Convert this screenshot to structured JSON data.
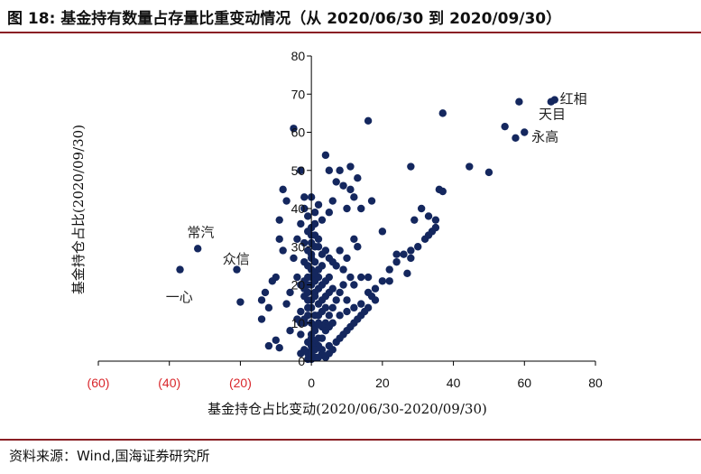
{
  "figure": {
    "title": "图 18:  基金持有数量占存量比重变动情况（从 2020/06/30 到 2020/09/30）",
    "source": "资料来源：Wind,国海证券研究所"
  },
  "colors": {
    "point": "#14275e",
    "negative_tick": "#d9262b",
    "axis": "#000000",
    "rule": "#8a1f24"
  },
  "chart_data": {
    "type": "scatter",
    "xlabel": "基金持仓占比变动(2020/06/30-2020/09/30)",
    "ylabel": "基金持仓占比(2020/09/30)",
    "xlim": [
      -60,
      80
    ],
    "ylim": [
      0,
      80
    ],
    "x_ticks": [
      {
        "value": -60,
        "label": "(60)"
      },
      {
        "value": -40,
        "label": "(40)"
      },
      {
        "value": -20,
        "label": "(20)"
      },
      {
        "value": 0,
        "label": "0"
      },
      {
        "value": 20,
        "label": "20"
      },
      {
        "value": 40,
        "label": "40"
      },
      {
        "value": 60,
        "label": "60"
      },
      {
        "value": 80,
        "label": "80"
      }
    ],
    "y_ticks": [
      0,
      10,
      20,
      30,
      40,
      50,
      60,
      70,
      80
    ],
    "grid": false,
    "annotations": [
      {
        "text": "红相",
        "x": 70,
        "y": 69
      },
      {
        "text": "天目",
        "x": 64,
        "y": 65
      },
      {
        "text": "永高",
        "x": 62,
        "y": 59
      },
      {
        "text": "常汽",
        "x": -35,
        "y": 34
      },
      {
        "text": "众信",
        "x": -25,
        "y": 27
      },
      {
        "text": "一心",
        "x": -41,
        "y": 17
      }
    ],
    "points": [
      [
        68.5,
        68.5
      ],
      [
        67.5,
        68
      ],
      [
        58.5,
        68
      ],
      [
        54.5,
        61.5
      ],
      [
        57.5,
        58.5
      ],
      [
        60,
        60
      ],
      [
        50,
        49.5
      ],
      [
        44.5,
        51
      ],
      [
        37,
        65
      ],
      [
        36,
        45
      ],
      [
        37,
        44.5
      ],
      [
        16,
        63
      ],
      [
        28,
        51
      ],
      [
        -5,
        61
      ],
      [
        -37,
        24
      ],
      [
        -32,
        29.5
      ],
      [
        -21,
        24
      ],
      [
        -20,
        15.5
      ],
      [
        -14,
        11
      ],
      [
        -14,
        16
      ],
      [
        -12,
        14
      ],
      [
        -10,
        5.5
      ],
      [
        -9,
        3.5
      ],
      [
        -12,
        4
      ],
      [
        -8,
        29
      ],
      [
        -9,
        32
      ],
      [
        -11,
        21
      ],
      [
        -13,
        18
      ],
      [
        -8,
        45
      ],
      [
        -7,
        42
      ],
      [
        -9,
        37
      ],
      [
        -10,
        22
      ],
      [
        -6,
        8
      ],
      [
        -4,
        11
      ],
      [
        -3,
        10
      ],
      [
        -6,
        18
      ],
      [
        -4,
        22
      ],
      [
        -7,
        15
      ],
      [
        -5,
        27
      ],
      [
        -4,
        32
      ],
      [
        -3,
        36
      ],
      [
        -2,
        43
      ],
      [
        -1,
        34
      ],
      [
        -2,
        40
      ],
      [
        -3,
        50
      ],
      [
        -1,
        38
      ],
      [
        -2,
        26
      ],
      [
        -3,
        20
      ],
      [
        -2,
        17
      ],
      [
        -1,
        14
      ],
      [
        -2,
        10
      ],
      [
        -3,
        7
      ],
      [
        -1,
        5
      ],
      [
        -2,
        3
      ],
      [
        -1,
        2
      ],
      [
        -3,
        2
      ],
      [
        -1,
        0.5
      ],
      [
        0,
        0.5
      ],
      [
        -1,
        12
      ],
      [
        -2,
        11
      ],
      [
        -1,
        16
      ],
      [
        -3,
        13
      ],
      [
        -2,
        21
      ],
      [
        -1,
        22
      ],
      [
        -1,
        20
      ],
      [
        -2,
        19
      ],
      [
        -1,
        18
      ],
      [
        0,
        20
      ],
      [
        0,
        22
      ],
      [
        1,
        18
      ],
      [
        1,
        21
      ],
      [
        2,
        19
      ],
      [
        2,
        15
      ],
      [
        1,
        12
      ],
      [
        2,
        10
      ],
      [
        1,
        8
      ],
      [
        0,
        7
      ],
      [
        2,
        6
      ],
      [
        1,
        5
      ],
      [
        2,
        4
      ],
      [
        3,
        3
      ],
      [
        3,
        2
      ],
      [
        4,
        1
      ],
      [
        5,
        2
      ],
      [
        5,
        4
      ],
      [
        6,
        3
      ],
      [
        7,
        5
      ],
      [
        8,
        6
      ],
      [
        9,
        7
      ],
      [
        10,
        8
      ],
      [
        11,
        9
      ],
      [
        12,
        10
      ],
      [
        13,
        11
      ],
      [
        14,
        12
      ],
      [
        15,
        13
      ],
      [
        16,
        14
      ],
      [
        17,
        17
      ],
      [
        18,
        19
      ],
      [
        20,
        21
      ],
      [
        22,
        24
      ],
      [
        24,
        26
      ],
      [
        26,
        28
      ],
      [
        28,
        29
      ],
      [
        30,
        30
      ],
      [
        32,
        32
      ],
      [
        33,
        33
      ],
      [
        34,
        34
      ],
      [
        35,
        35
      ],
      [
        29,
        37
      ],
      [
        31,
        40
      ],
      [
        33,
        38
      ],
      [
        35,
        37
      ],
      [
        28,
        27
      ],
      [
        24,
        28
      ],
      [
        27,
        23
      ],
      [
        22,
        21
      ],
      [
        20,
        34
      ],
      [
        17,
        42
      ],
      [
        14,
        40
      ],
      [
        12,
        43
      ],
      [
        13,
        48
      ],
      [
        11,
        45
      ],
      [
        10,
        40
      ],
      [
        11,
        51
      ],
      [
        8,
        50
      ],
      [
        5,
        50
      ],
      [
        4,
        54
      ],
      [
        7,
        47
      ],
      [
        9,
        46
      ],
      [
        6,
        42
      ],
      [
        5,
        39
      ],
      [
        3,
        37
      ],
      [
        2,
        41
      ],
      [
        1,
        39
      ],
      [
        0,
        43
      ],
      [
        1,
        33
      ],
      [
        2,
        30
      ],
      [
        3,
        28
      ],
      [
        4,
        29
      ],
      [
        5,
        27
      ],
      [
        6,
        26
      ],
      [
        7,
        25
      ],
      [
        8,
        29
      ],
      [
        9,
        24
      ],
      [
        10,
        27
      ],
      [
        12,
        32
      ],
      [
        13,
        30
      ],
      [
        11,
        22
      ],
      [
        9,
        20
      ],
      [
        8,
        18
      ],
      [
        7,
        16
      ],
      [
        6,
        14
      ],
      [
        5,
        12
      ],
      [
        4,
        10
      ],
      [
        3,
        9
      ],
      [
        4,
        8
      ],
      [
        5,
        9
      ],
      [
        6,
        10
      ],
      [
        8,
        12
      ],
      [
        10,
        16
      ],
      [
        12,
        20
      ],
      [
        14,
        22
      ],
      [
        16,
        18
      ],
      [
        18,
        16
      ],
      [
        16,
        22
      ],
      [
        14,
        15
      ],
      [
        12,
        14
      ],
      [
        10,
        13
      ],
      [
        3,
        16
      ],
      [
        4,
        17
      ],
      [
        5,
        18
      ],
      [
        6,
        19
      ],
      [
        3,
        20
      ],
      [
        4,
        21
      ],
      [
        5,
        22
      ],
      [
        2,
        24
      ],
      [
        3,
        25
      ],
      [
        1,
        26
      ],
      [
        0,
        28
      ],
      [
        1,
        30
      ],
      [
        0,
        31
      ],
      [
        2,
        32
      ],
      [
        0,
        35
      ],
      [
        1,
        36
      ],
      [
        0,
        4
      ],
      [
        0,
        3
      ],
      [
        1,
        1
      ],
      [
        2,
        1
      ],
      [
        0,
        2
      ],
      [
        1,
        3
      ],
      [
        0,
        6
      ],
      [
        3,
        6
      ],
      [
        1,
        9
      ],
      [
        0,
        10
      ],
      [
        2,
        12
      ],
      [
        3,
        13
      ],
      [
        4,
        14
      ],
      [
        0,
        14
      ],
      [
        0,
        16
      ],
      [
        1,
        17
      ],
      [
        2,
        22
      ],
      [
        0,
        24
      ],
      [
        1,
        23
      ],
      [
        -1,
        25
      ],
      [
        0,
        27
      ],
      [
        -1,
        29
      ],
      [
        -2,
        31
      ],
      [
        0,
        33
      ]
    ]
  }
}
